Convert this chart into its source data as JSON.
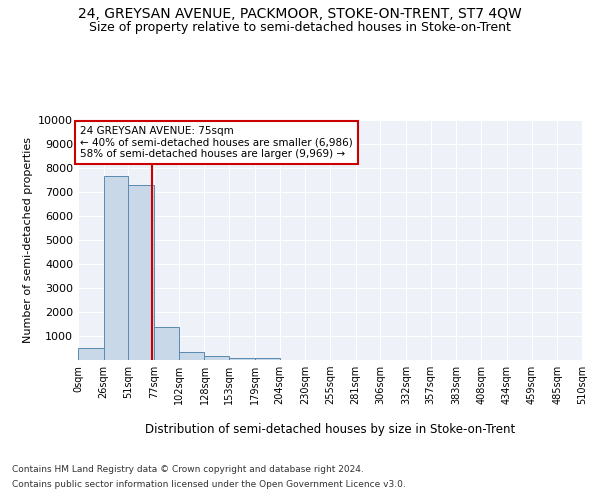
{
  "title": "24, GREYSAN AVENUE, PACKMOOR, STOKE-ON-TRENT, ST7 4QW",
  "subtitle": "Size of property relative to semi-detached houses in Stoke-on-Trent",
  "xlabel": "Distribution of semi-detached houses by size in Stoke-on-Trent",
  "ylabel": "Number of semi-detached properties",
  "footnote1": "Contains HM Land Registry data © Crown copyright and database right 2024.",
  "footnote2": "Contains public sector information licensed under the Open Government Licence v3.0.",
  "bin_edges": [
    0,
    26,
    51,
    77,
    102,
    128,
    153,
    179,
    204,
    230,
    255,
    281,
    306,
    332,
    357,
    383,
    408,
    434,
    459,
    485,
    510
  ],
  "bar_heights": [
    520,
    7650,
    7300,
    1360,
    320,
    160,
    100,
    90,
    0,
    0,
    0,
    0,
    0,
    0,
    0,
    0,
    0,
    0,
    0,
    0
  ],
  "bar_color": "#c8d8e8",
  "bar_edge_color": "#5a8ab0",
  "property_value": 75,
  "property_line_color": "#cc0000",
  "annotation_line1": "24 GREYSAN AVENUE: 75sqm",
  "annotation_line2": "← 40% of semi-detached houses are smaller (6,986)",
  "annotation_line3": "58% of semi-detached houses are larger (9,969) →",
  "annotation_box_color": "#ffffff",
  "annotation_box_edge": "#cc0000",
  "ylim": [
    0,
    10000
  ],
  "yticks": [
    0,
    1000,
    2000,
    3000,
    4000,
    5000,
    6000,
    7000,
    8000,
    9000,
    10000
  ],
  "tick_labels": [
    "0sqm",
    "26sqm",
    "51sqm",
    "77sqm",
    "102sqm",
    "128sqm",
    "153sqm",
    "179sqm",
    "204sqm",
    "230sqm",
    "255sqm",
    "281sqm",
    "306sqm",
    "332sqm",
    "357sqm",
    "383sqm",
    "408sqm",
    "434sqm",
    "459sqm",
    "485sqm",
    "510sqm"
  ],
  "bg_color": "#eef2f8",
  "fig_bg_color": "#ffffff",
  "title_fontsize": 10,
  "subtitle_fontsize": 9,
  "grid_color": "#ffffff"
}
